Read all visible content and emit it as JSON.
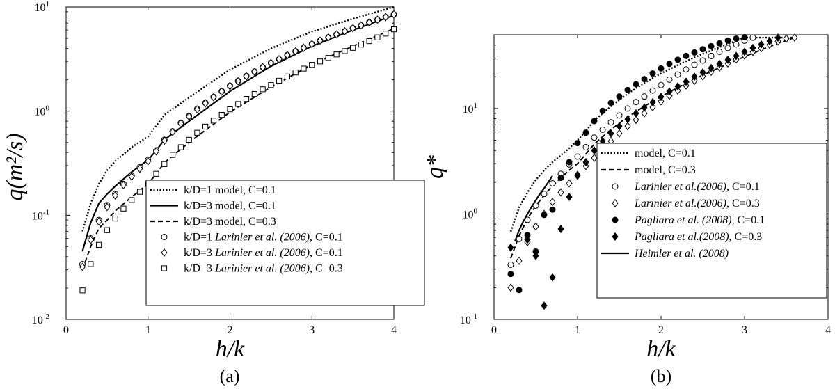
{
  "chart_data": [
    {
      "panel_label": "(a)",
      "type": "scatter",
      "xlabel": "h/k",
      "ylabel": "q(m²/s)",
      "xlim": [
        0,
        4
      ],
      "ylim": [
        0.01,
        10
      ],
      "yscale": "log",
      "grid": false,
      "legend_placement": "bottom-right",
      "x_ticks": [
        "0",
        "1",
        "2",
        "3",
        "4"
      ],
      "y_ticks": [
        {
          "value": 0.01,
          "base": "10",
          "exp": "-2"
        },
        {
          "value": 0.1,
          "base": "10",
          "exp": "-1"
        },
        {
          "value": 1,
          "base": "10",
          "exp": "0"
        },
        {
          "value": 10,
          "base": "10",
          "exp": "1"
        }
      ],
      "series": [
        {
          "name": "k/D=1 model, C=0.1",
          "style": "dotted",
          "x": [
            0.2,
            0.3,
            0.4,
            0.5,
            0.6,
            0.8,
            1.0,
            1.1,
            1.2,
            1.5,
            2.0,
            2.5,
            3.0,
            3.5,
            4.0
          ],
          "y": [
            0.07,
            0.13,
            0.2,
            0.27,
            0.33,
            0.45,
            0.57,
            0.72,
            0.92,
            1.35,
            2.5,
            4.0,
            5.8,
            7.7,
            10.0
          ]
        },
        {
          "name": "k/D=3 model, C=0.1",
          "style": "solid",
          "x": [
            0.2,
            0.3,
            0.4,
            0.5,
            0.6,
            0.8,
            1.0,
            1.1,
            1.2,
            1.5,
            2.0,
            2.5,
            3.0,
            3.5,
            4.0
          ],
          "y": [
            0.045,
            0.085,
            0.13,
            0.16,
            0.19,
            0.26,
            0.34,
            0.42,
            0.53,
            0.8,
            1.55,
            2.7,
            4.2,
            6.0,
            8.3
          ]
        },
        {
          "name": "k/D=3 model, C=0.3",
          "style": "dashed",
          "x": [
            0.2,
            0.3,
            0.4,
            0.5,
            0.6,
            0.8,
            1.0,
            1.1,
            1.2,
            1.5,
            2.0,
            2.5,
            3.0,
            3.5,
            4.0
          ],
          "y": [
            0.03,
            0.05,
            0.075,
            0.09,
            0.11,
            0.15,
            0.2,
            0.25,
            0.32,
            0.5,
            0.98,
            1.7,
            2.8,
            4.2,
            6.2
          ]
        },
        {
          "name": "k/D=1 Larinier et al. (2006), C=0.1",
          "style": "circle",
          "x": [
            0.2,
            0.3,
            0.4,
            0.5,
            0.6,
            0.7,
            0.8,
            0.9,
            1.0,
            1.1,
            1.2,
            1.3,
            1.4,
            1.5,
            1.6,
            1.7,
            1.8,
            1.9,
            2.0,
            2.1,
            2.2,
            2.3,
            2.4,
            2.5,
            2.6,
            2.7,
            2.8,
            2.9,
            3.0,
            3.1,
            3.2,
            3.3,
            3.4,
            3.5,
            3.6,
            3.7,
            3.8,
            3.9,
            4.0
          ],
          "y": [
            0.034,
            0.06,
            0.09,
            0.125,
            0.16,
            0.2,
            0.24,
            0.29,
            0.34,
            0.42,
            0.53,
            0.64,
            0.77,
            0.9,
            1.05,
            1.2,
            1.37,
            1.55,
            1.75,
            1.95,
            2.17,
            2.4,
            2.65,
            2.9,
            3.15,
            3.45,
            3.75,
            4.05,
            4.4,
            4.75,
            5.1,
            5.45,
            5.85,
            6.25,
            6.65,
            7.1,
            7.55,
            8.0,
            8.5
          ]
        },
        {
          "name": "k/D=3 Larinier et al. (2006), C=0.1",
          "style": "diamond",
          "x": [
            0.2,
            0.3,
            0.4,
            0.5,
            0.6,
            0.7,
            0.8,
            0.9,
            1.0,
            1.1,
            1.2,
            1.3,
            1.4,
            1.5,
            1.6,
            1.7,
            1.8,
            1.9,
            2.0,
            2.1,
            2.2,
            2.3,
            2.4,
            2.5,
            2.6,
            2.7,
            2.8,
            2.9,
            3.0,
            3.1,
            3.2,
            3.3,
            3.4,
            3.5,
            3.6,
            3.7,
            3.8,
            3.9,
            4.0
          ],
          "y": [
            0.032,
            0.058,
            0.087,
            0.12,
            0.155,
            0.195,
            0.235,
            0.28,
            0.33,
            0.41,
            0.52,
            0.63,
            0.76,
            0.89,
            1.04,
            1.19,
            1.36,
            1.54,
            1.74,
            1.94,
            2.16,
            2.39,
            2.64,
            2.9,
            3.15,
            3.45,
            3.75,
            4.05,
            4.4,
            4.75,
            5.1,
            5.45,
            5.85,
            6.25,
            6.65,
            7.1,
            7.55,
            8.0,
            8.5
          ]
        },
        {
          "name": "k/D=3 Larinier et al. (2006), C=0.3",
          "style": "square",
          "x": [
            0.2,
            0.3,
            0.4,
            0.5,
            0.6,
            0.7,
            0.8,
            0.9,
            1.0,
            1.1,
            1.2,
            1.3,
            1.4,
            1.5,
            1.6,
            1.7,
            1.8,
            1.9,
            2.0,
            2.1,
            2.2,
            2.3,
            2.4,
            2.5,
            2.6,
            2.7,
            2.8,
            2.9,
            3.0,
            3.1,
            3.2,
            3.3,
            3.4,
            3.5,
            3.6,
            3.7,
            3.8,
            3.9,
            4.0
          ],
          "y": [
            0.019,
            0.034,
            0.052,
            0.072,
            0.093,
            0.116,
            0.14,
            0.168,
            0.2,
            0.25,
            0.31,
            0.38,
            0.45,
            0.53,
            0.62,
            0.71,
            0.81,
            0.92,
            1.04,
            1.17,
            1.31,
            1.46,
            1.62,
            1.78,
            1.96,
            2.15,
            2.35,
            2.56,
            2.78,
            3.0,
            3.24,
            3.5,
            3.77,
            4.05,
            4.35,
            4.7,
            5.1,
            5.55,
            6.1
          ]
        }
      ]
    },
    {
      "panel_label": "(b)",
      "type": "scatter",
      "xlabel": "h/k",
      "ylabel": "q*",
      "xlim": [
        0,
        4
      ],
      "ylim": [
        0.1,
        50
      ],
      "yscale": "log",
      "grid": false,
      "legend_placement": "bottom-right",
      "x_ticks": [
        "0",
        "1",
        "2",
        "3",
        "4"
      ],
      "y_ticks": [
        {
          "value": 0.1,
          "base": "10",
          "exp": "-1"
        },
        {
          "value": 1,
          "base": "10",
          "exp": "0"
        },
        {
          "value": 10,
          "base": "10",
          "exp": "1"
        }
      ],
      "series": [
        {
          "name": "model, C=0.1",
          "style": "dotted",
          "x": [
            0.2,
            0.3,
            0.4,
            0.5,
            0.6,
            0.7,
            0.8,
            0.9,
            1.0,
            1.1,
            1.2,
            1.4,
            1.6,
            1.8,
            2.0,
            2.2,
            2.4,
            2.6,
            2.8,
            3.0,
            3.2,
            3.4,
            3.6
          ],
          "y": [
            0.68,
            1.15,
            1.6,
            2.1,
            2.6,
            3.1,
            3.6,
            4.2,
            5.0,
            6.1,
            7.7,
            10.5,
            13.8,
            17.5,
            21.5,
            25.8,
            30.5,
            35.5,
            41.0,
            47.0,
            47.0,
            47.0,
            47.0
          ]
        },
        {
          "name": "model, C=0.3",
          "style": "dashed",
          "x": [
            0.2,
            0.3,
            0.4,
            0.5,
            0.6,
            0.7,
            0.8,
            0.9,
            1.0,
            1.1,
            1.2,
            1.4,
            1.6,
            1.8,
            2.0,
            2.2,
            2.4,
            2.6,
            2.8,
            3.0,
            3.2,
            3.4,
            3.6
          ],
          "y": [
            0.38,
            0.62,
            0.9,
            1.2,
            1.5,
            1.85,
            2.2,
            2.6,
            3.0,
            3.7,
            4.6,
            6.3,
            8.3,
            10.5,
            13.0,
            15.8,
            19.0,
            22.5,
            26.5,
            31.0,
            36.0,
            41.5,
            47.0
          ]
        },
        {
          "name": "Larinier et al.(2006), C=0.1",
          "style": "circle",
          "x": [
            0.2,
            0.3,
            0.4,
            0.5,
            0.6,
            0.7,
            0.8,
            0.9,
            1.0,
            1.1,
            1.2,
            1.3,
            1.4,
            1.5,
            1.6,
            1.7,
            1.8,
            1.9,
            2.0,
            2.1,
            2.2,
            2.3,
            2.4,
            2.5,
            2.6,
            2.7,
            2.8,
            2.9,
            3.0,
            3.1
          ],
          "y": [
            0.33,
            0.58,
            0.88,
            1.2,
            1.55,
            1.95,
            2.4,
            2.95,
            3.5,
            4.3,
            5.3,
            6.3,
            7.4,
            8.6,
            10.0,
            11.5,
            13.0,
            14.8,
            16.7,
            18.8,
            21.0,
            23.5,
            26.0,
            28.5,
            31.5,
            34.5,
            37.5,
            40.5,
            44.0,
            47.0
          ]
        },
        {
          "name": "Larinier et al.(2006), C=0.3",
          "style": "diamond",
          "x": [
            0.2,
            0.3,
            0.4,
            0.5,
            0.6,
            0.7,
            0.8,
            0.9,
            1.0,
            1.1,
            1.2,
            1.3,
            1.4,
            1.5,
            1.6,
            1.7,
            1.8,
            1.9,
            2.0,
            2.1,
            2.2,
            2.3,
            2.4,
            2.5,
            2.6,
            2.7,
            2.8,
            2.9,
            3.0,
            3.1,
            3.2,
            3.3,
            3.4,
            3.5,
            3.6
          ],
          "y": [
            0.2,
            0.36,
            0.54,
            0.76,
            1.0,
            1.3,
            1.6,
            1.95,
            2.35,
            2.85,
            3.4,
            4.1,
            4.9,
            5.8,
            6.8,
            7.8,
            9.0,
            10.3,
            11.7,
            13.2,
            14.8,
            16.5,
            18.3,
            20.2,
            22.3,
            24.5,
            26.8,
            29.2,
            31.8,
            34.5,
            37.3,
            40.3,
            43.3,
            46.0,
            47.0
          ]
        },
        {
          "name": "Pagliara et al. (2008), C=0.1",
          "style": "filled-circle",
          "x": [
            0.2,
            0.3,
            0.4,
            0.5,
            0.6,
            0.7,
            0.8,
            0.9,
            1.0,
            1.1,
            1.2,
            1.3,
            1.4,
            1.5,
            1.6,
            1.7,
            1.8,
            1.9,
            2.0,
            2.1,
            2.2,
            2.3,
            2.4,
            2.5,
            2.6,
            2.7,
            2.8,
            2.9,
            3.0
          ],
          "y": [
            0.27,
            0.19,
            0.63,
            0.44,
            0.98,
            1.1,
            2.2,
            3.1,
            4.7,
            5.9,
            7.6,
            9.5,
            11.3,
            13.0,
            15.0,
            17.0,
            19.0,
            21.5,
            24.0,
            26.5,
            29.0,
            31.5,
            34.0,
            36.5,
            39.0,
            41.5,
            44.0,
            46.0,
            47.5
          ]
        },
        {
          "name": "Pagliara et al.(2008), C=0.3",
          "style": "filled-diamond",
          "x": [
            0.2,
            0.4,
            0.5,
            0.6,
            0.7,
            0.8,
            0.9,
            1.0,
            1.1,
            1.2,
            1.3,
            1.4,
            1.5,
            1.6,
            1.7,
            1.8,
            1.9,
            2.0,
            2.1,
            2.2,
            2.3,
            2.4,
            2.5,
            2.6,
            2.7,
            2.8,
            2.9,
            3.0,
            3.1,
            3.2,
            3.3,
            3.4
          ],
          "y": [
            0.48,
            0.57,
            0.4,
            0.135,
            0.25,
            0.72,
            1.45,
            2.3,
            3.1,
            4.0,
            4.9,
            5.8,
            6.8,
            7.9,
            9.0,
            10.2,
            11.5,
            12.9,
            14.5,
            16.2,
            18.0,
            20.0,
            22.0,
            24.2,
            26.5,
            29.0,
            31.5,
            34.5,
            37.5,
            40.5,
            43.5,
            47.0
          ]
        },
        {
          "name": "Heimler et al. (2008)",
          "style": "solid",
          "x": [
            0.25,
            0.3,
            0.35,
            0.4,
            0.45,
            0.5,
            0.55,
            0.6,
            0.65,
            0.7
          ],
          "y": [
            0.55,
            0.7,
            0.85,
            1.0,
            1.17,
            1.35,
            1.55,
            1.75,
            2.0,
            2.3
          ]
        }
      ]
    }
  ]
}
